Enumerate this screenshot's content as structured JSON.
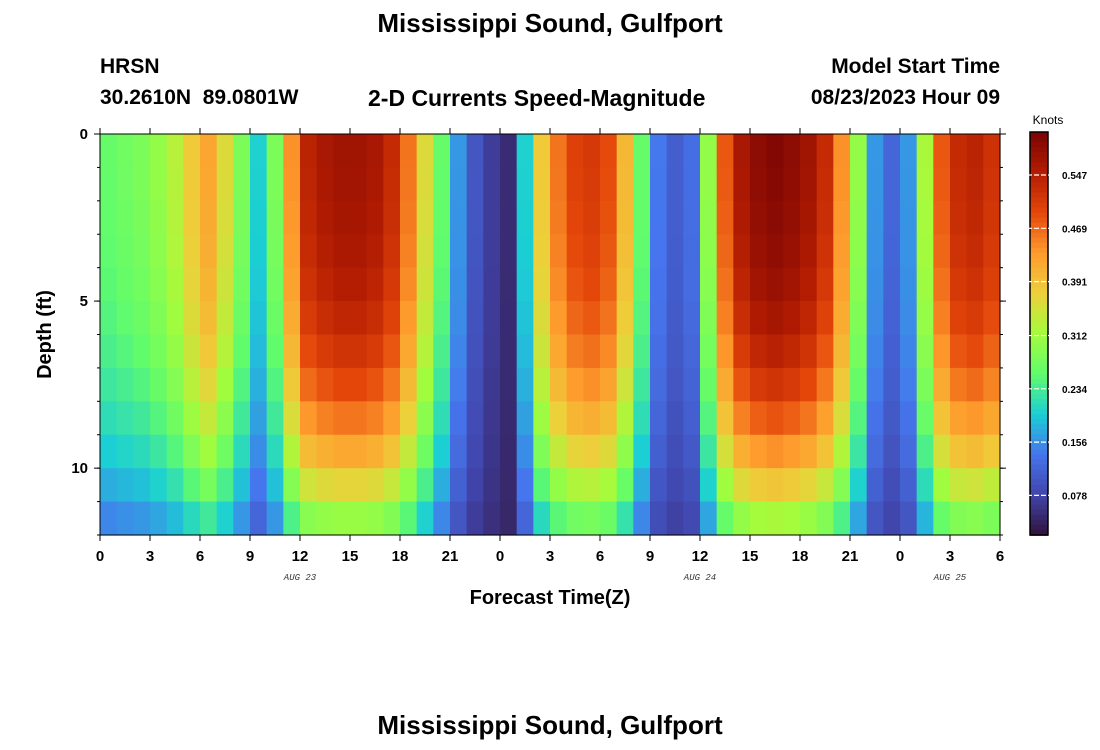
{
  "page": {
    "title": "Mississippi Sound, Gulfport",
    "bottom_title": "Mississippi Sound, Gulfport",
    "model_name": "HRSN",
    "location": "30.2610N  89.0801W",
    "model_start_label": "Model Start Time",
    "model_start_value": "08/23/2023 Hour 09",
    "subtitle": "2-D Currents Speed-Magnitude"
  },
  "chart_data": {
    "type": "heatmap",
    "title": "2-D Currents Speed-Magnitude",
    "xlabel": "Forecast Time(Z)",
    "ylabel": "Depth (ft)",
    "x_range": [
      0,
      54
    ],
    "y_range": [
      0,
      12
    ],
    "y_inverted": true,
    "x_ticks": [
      "0",
      "3",
      "6",
      "9",
      "12",
      "15",
      "18",
      "21",
      "0",
      "3",
      "6",
      "9",
      "12",
      "15",
      "18",
      "21",
      "0",
      "3",
      "6"
    ],
    "y_ticks": [
      "0",
      "5",
      "10"
    ],
    "date_labels": [
      {
        "text": "AUG 23",
        "x": 12
      },
      {
        "text": "AUG 24",
        "x": 36
      },
      {
        "text": "AUG 25",
        "x": 51
      }
    ],
    "colorbar": {
      "label": "Knots",
      "range": [
        0.02,
        0.61
      ],
      "ticks": [
        "0.547",
        "0.469",
        "0.391",
        "0.312",
        "0.234",
        "0.156",
        "0.078"
      ],
      "colormap": [
        "#30123b",
        "#4145ab",
        "#4675ed",
        "#1bcfd4",
        "#61fc6c",
        "#a4fc3c",
        "#eecf3a",
        "#fe9b2d",
        "#e4460a",
        "#b21c02",
        "#7a0403"
      ]
    },
    "depths_ft": [
      0,
      1,
      2,
      3,
      4,
      5,
      6,
      7,
      8,
      9,
      10,
      11
    ],
    "hours": [
      0,
      1,
      2,
      3,
      4,
      5,
      6,
      7,
      8,
      9,
      10,
      11,
      12,
      13,
      14,
      15,
      16,
      17,
      18,
      19,
      20,
      21,
      22,
      23,
      24,
      25,
      26,
      27,
      28,
      29,
      30,
      31,
      32,
      33,
      34,
      35,
      36,
      37,
      38,
      39,
      40,
      41,
      42,
      43,
      44,
      45,
      46,
      47,
      48,
      49,
      50,
      51,
      52,
      53
    ],
    "surface_speed_knots": [
      0.26,
      0.27,
      0.28,
      0.3,
      0.33,
      0.38,
      0.42,
      0.36,
      0.28,
      0.2,
      0.28,
      0.44,
      0.54,
      0.56,
      0.57,
      0.57,
      0.56,
      0.53,
      0.46,
      0.36,
      0.26,
      0.16,
      0.1,
      0.07,
      0.05,
      0.2,
      0.38,
      0.46,
      0.5,
      0.51,
      0.49,
      0.4,
      0.26,
      0.14,
      0.11,
      0.13,
      0.3,
      0.48,
      0.56,
      0.59,
      0.6,
      0.59,
      0.57,
      0.53,
      0.44,
      0.3,
      0.16,
      0.12,
      0.16,
      0.32,
      0.48,
      0.53,
      0.54,
      0.52
    ],
    "notes_min_speed_knots": 0.04
  }
}
